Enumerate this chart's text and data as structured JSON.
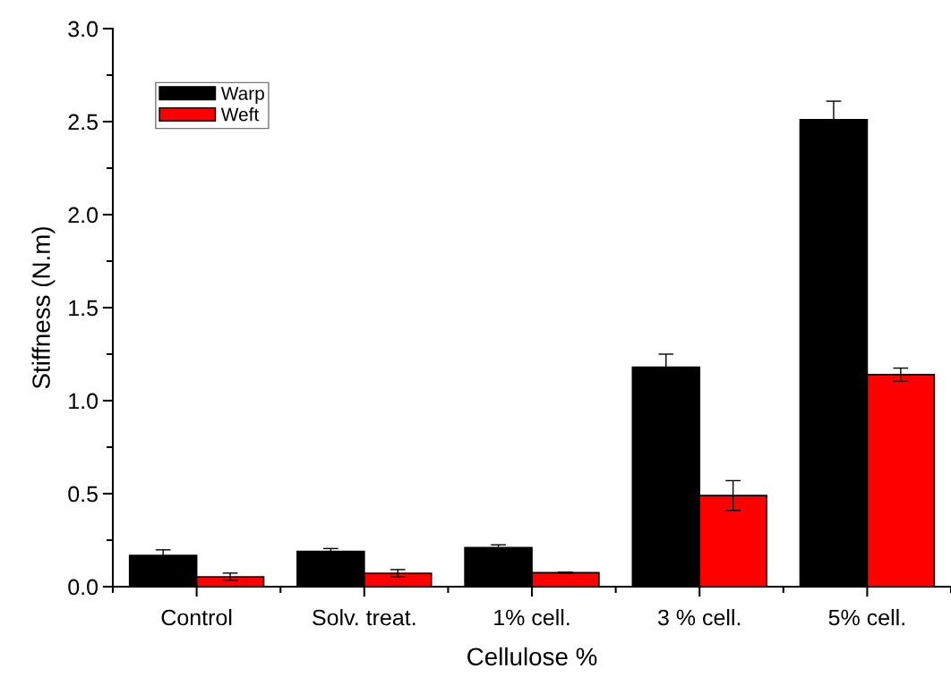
{
  "chart_data": {
    "type": "bar",
    "xlabel": "Cellulose %",
    "ylabel": "Stiffness (N.m)",
    "categories": [
      "Control",
      "Solv. treat.",
      "1% cell.",
      "3 % cell.",
      "5% cell."
    ],
    "series": [
      {
        "name": "Warp",
        "color": "#000000",
        "values": [
          0.168,
          0.19,
          0.21,
          1.18,
          2.51
        ],
        "errors": [
          0.03,
          0.015,
          0.015,
          0.07,
          0.1
        ]
      },
      {
        "name": "Weft",
        "color": "#ff0000",
        "values": [
          0.053,
          0.072,
          0.075,
          0.49,
          1.14
        ],
        "errors": [
          0.02,
          0.02,
          0.003,
          0.08,
          0.035
        ]
      }
    ],
    "ylim": [
      0,
      3.0
    ],
    "yticks": [
      {
        "value": 0,
        "label": "0.0"
      },
      0.5,
      {
        "value": 1,
        "label": "1.0"
      },
      1.5,
      {
        "value": 2,
        "label": "2.0"
      },
      2.5,
      {
        "value": 3,
        "label": "3.0"
      }
    ],
    "grid": false,
    "legend": "top left"
  }
}
